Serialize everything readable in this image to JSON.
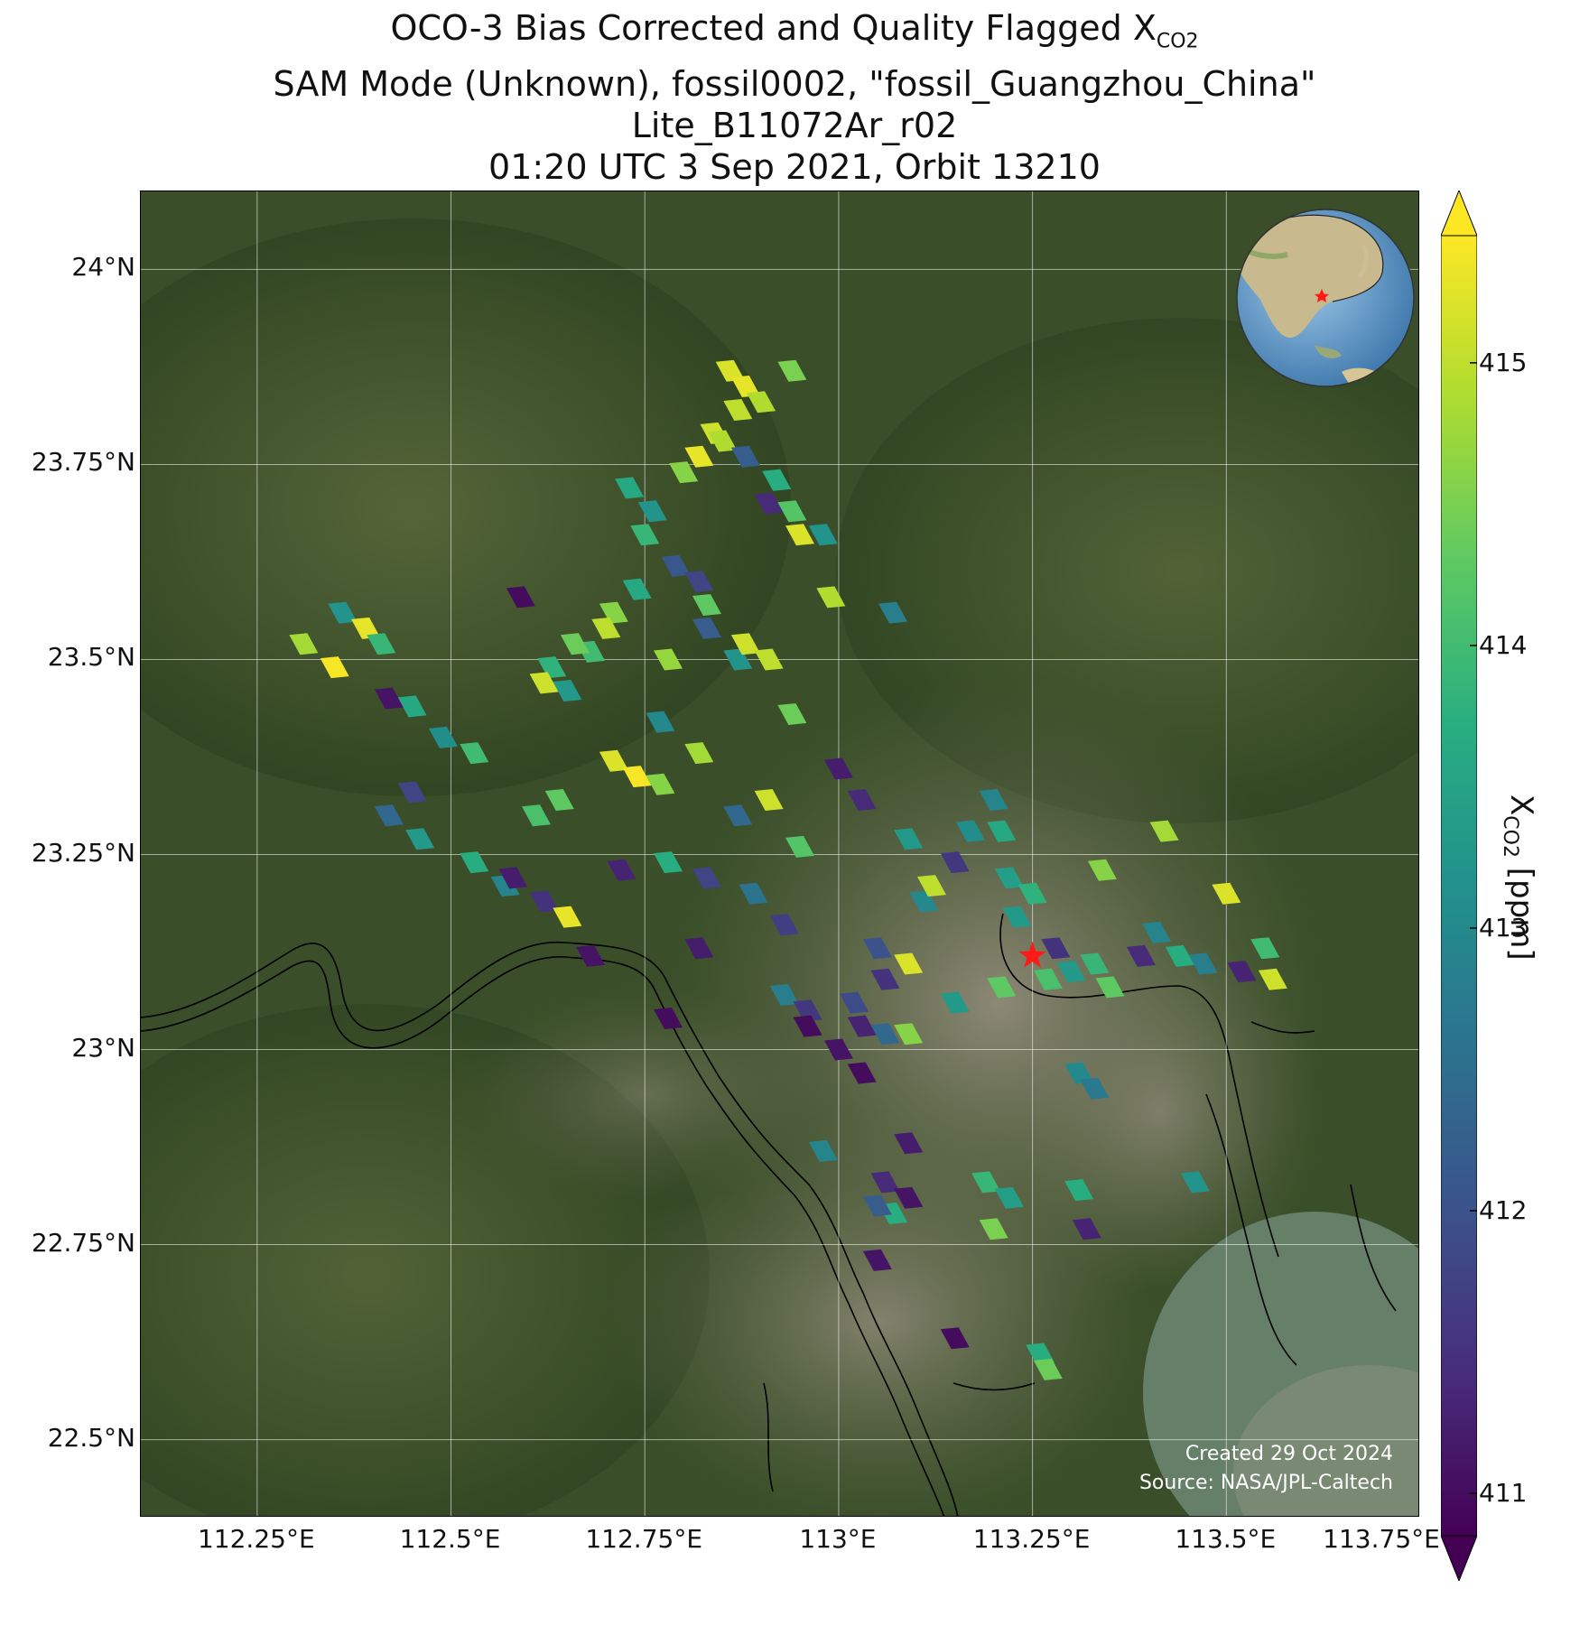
{
  "title": {
    "line1_main": "OCO-3 Bias Corrected and Quality Flagged X",
    "line1_sub": "CO2",
    "line2": "SAM Mode (Unknown), fossil0002, \"fossil_Guangzhou_China\"",
    "line3": "Lite_B11072Ar_r02",
    "line4": "01:20 UTC 3 Sep 2021, Orbit 13210"
  },
  "map": {
    "lon_range": [
      112.1,
      113.75
    ],
    "lat_range": [
      22.4,
      24.1
    ],
    "lat_ticks": [
      {
        "value": 24.0,
        "label": "24°N"
      },
      {
        "value": 23.75,
        "label": "23.75°N"
      },
      {
        "value": 23.5,
        "label": "23.5°N"
      },
      {
        "value": 23.25,
        "label": "23.25°N"
      },
      {
        "value": 23.0,
        "label": "23°N"
      },
      {
        "value": 22.75,
        "label": "22.75°N"
      },
      {
        "value": 22.5,
        "label": "22.5°N"
      }
    ],
    "lon_ticks": [
      {
        "value": 112.25,
        "label": "112.25°E"
      },
      {
        "value": 112.5,
        "label": "112.5°E"
      },
      {
        "value": 112.75,
        "label": "112.75°E"
      },
      {
        "value": 113.0,
        "label": "113°E"
      },
      {
        "value": 113.25,
        "label": "113.25°E"
      },
      {
        "value": 113.5,
        "label": "113.5°E"
      },
      {
        "value": 113.75,
        "label": "113.75°E"
      }
    ],
    "target": {
      "lon": 113.25,
      "lat": 23.12,
      "marker": "red-star"
    },
    "gridlines": true,
    "background": "satellite-imagery",
    "inset_globe": "globe-locator",
    "credit_line1": "Created 29 Oct 2024",
    "credit_line2": "Source: NASA/JPL-Caltech"
  },
  "colorbar": {
    "label_main": "X",
    "label_sub": "CO2",
    "label_unit": " [ppm]",
    "min": 410.85,
    "max": 415.45,
    "colormap": "viridis",
    "ticks": [
      {
        "value": 411,
        "label": "411"
      },
      {
        "value": 412,
        "label": "412"
      },
      {
        "value": 413,
        "label": "413"
      },
      {
        "value": 414,
        "label": "414"
      },
      {
        "value": 415,
        "label": "415"
      }
    ]
  },
  "chart_data": {
    "type": "scatter",
    "x_label": "",
    "y_label": "",
    "units": "ppm",
    "soundings": [
      {
        "lon": 112.86,
        "lat": 23.87,
        "value": 415.2
      },
      {
        "lon": 112.88,
        "lat": 23.85,
        "value": 415.3
      },
      {
        "lon": 112.9,
        "lat": 23.83,
        "value": 414.9
      },
      {
        "lon": 112.87,
        "lat": 23.82,
        "value": 415.0
      },
      {
        "lon": 112.84,
        "lat": 23.79,
        "value": 415.1
      },
      {
        "lon": 112.82,
        "lat": 23.76,
        "value": 415.3
      },
      {
        "lon": 112.8,
        "lat": 23.74,
        "value": 414.6
      },
      {
        "lon": 112.85,
        "lat": 23.78,
        "value": 414.9
      },
      {
        "lon": 112.88,
        "lat": 23.76,
        "value": 412.2
      },
      {
        "lon": 112.94,
        "lat": 23.87,
        "value": 414.5
      },
      {
        "lon": 112.92,
        "lat": 23.73,
        "value": 413.7
      },
      {
        "lon": 112.91,
        "lat": 23.7,
        "value": 411.4
      },
      {
        "lon": 112.94,
        "lat": 23.69,
        "value": 414.2
      },
      {
        "lon": 112.95,
        "lat": 23.66,
        "value": 415.2
      },
      {
        "lon": 112.98,
        "lat": 23.66,
        "value": 413.2
      },
      {
        "lon": 112.99,
        "lat": 23.58,
        "value": 414.9
      },
      {
        "lon": 113.07,
        "lat": 23.56,
        "value": 412.8
      },
      {
        "lon": 112.73,
        "lat": 23.72,
        "value": 413.6
      },
      {
        "lon": 112.76,
        "lat": 23.69,
        "value": 413.2
      },
      {
        "lon": 112.75,
        "lat": 23.66,
        "value": 413.9
      },
      {
        "lon": 112.79,
        "lat": 23.62,
        "value": 412.1
      },
      {
        "lon": 112.82,
        "lat": 23.6,
        "value": 411.8
      },
      {
        "lon": 112.83,
        "lat": 23.57,
        "value": 414.3
      },
      {
        "lon": 112.74,
        "lat": 23.59,
        "value": 413.6
      },
      {
        "lon": 112.71,
        "lat": 23.56,
        "value": 414.6
      },
      {
        "lon": 112.68,
        "lat": 23.51,
        "value": 414.0
      },
      {
        "lon": 112.7,
        "lat": 23.54,
        "value": 415.0
      },
      {
        "lon": 112.66,
        "lat": 23.52,
        "value": 414.4
      },
      {
        "lon": 112.63,
        "lat": 23.49,
        "value": 413.8
      },
      {
        "lon": 112.65,
        "lat": 23.46,
        "value": 413.3
      },
      {
        "lon": 112.62,
        "lat": 23.47,
        "value": 415.1
      },
      {
        "lon": 112.59,
        "lat": 23.58,
        "value": 411.0
      },
      {
        "lon": 112.78,
        "lat": 23.5,
        "value": 414.7
      },
      {
        "lon": 112.83,
        "lat": 23.54,
        "value": 412.2
      },
      {
        "lon": 112.87,
        "lat": 23.5,
        "value": 413.2
      },
      {
        "lon": 112.88,
        "lat": 23.52,
        "value": 415.1
      },
      {
        "lon": 112.91,
        "lat": 23.5,
        "value": 415.0
      },
      {
        "lon": 112.94,
        "lat": 23.43,
        "value": 414.4
      },
      {
        "lon": 112.77,
        "lat": 23.42,
        "value": 413.0
      },
      {
        "lon": 112.82,
        "lat": 23.38,
        "value": 414.8
      },
      {
        "lon": 112.71,
        "lat": 23.37,
        "value": 415.2
      },
      {
        "lon": 112.74,
        "lat": 23.35,
        "value": 415.4
      },
      {
        "lon": 112.77,
        "lat": 23.34,
        "value": 414.6
      },
      {
        "lon": 112.64,
        "lat": 23.32,
        "value": 414.3
      },
      {
        "lon": 112.61,
        "lat": 23.3,
        "value": 414.1
      },
      {
        "lon": 112.87,
        "lat": 23.3,
        "value": 412.4
      },
      {
        "lon": 112.91,
        "lat": 23.32,
        "value": 415.1
      },
      {
        "lon": 112.95,
        "lat": 23.26,
        "value": 414.2
      },
      {
        "lon": 113.0,
        "lat": 23.36,
        "value": 411.2
      },
      {
        "lon": 113.03,
        "lat": 23.32,
        "value": 411.4
      },
      {
        "lon": 113.09,
        "lat": 23.27,
        "value": 413.3
      },
      {
        "lon": 113.11,
        "lat": 23.19,
        "value": 413.0
      },
      {
        "lon": 112.45,
        "lat": 23.44,
        "value": 413.6
      },
      {
        "lon": 112.49,
        "lat": 23.4,
        "value": 413.1
      },
      {
        "lon": 112.53,
        "lat": 23.38,
        "value": 414.0
      },
      {
        "lon": 112.45,
        "lat": 23.33,
        "value": 411.8
      },
      {
        "lon": 112.42,
        "lat": 23.3,
        "value": 412.4
      },
      {
        "lon": 112.46,
        "lat": 23.27,
        "value": 413.3
      },
      {
        "lon": 112.53,
        "lat": 23.24,
        "value": 413.7
      },
      {
        "lon": 112.57,
        "lat": 23.21,
        "value": 412.9
      },
      {
        "lon": 112.36,
        "lat": 23.56,
        "value": 413.2
      },
      {
        "lon": 112.39,
        "lat": 23.54,
        "value": 415.3
      },
      {
        "lon": 112.41,
        "lat": 23.52,
        "value": 413.9
      },
      {
        "lon": 112.31,
        "lat": 23.52,
        "value": 414.8
      },
      {
        "lon": 112.35,
        "lat": 23.49,
        "value": 415.4
      },
      {
        "lon": 112.42,
        "lat": 23.45,
        "value": 411.1
      },
      {
        "lon": 112.58,
        "lat": 23.22,
        "value": 411.2
      },
      {
        "lon": 112.62,
        "lat": 23.19,
        "value": 411.5
      },
      {
        "lon": 112.65,
        "lat": 23.17,
        "value": 415.3
      },
      {
        "lon": 112.68,
        "lat": 23.12,
        "value": 411.1
      },
      {
        "lon": 112.72,
        "lat": 23.23,
        "value": 411.3
      },
      {
        "lon": 112.78,
        "lat": 23.24,
        "value": 413.7
      },
      {
        "lon": 112.83,
        "lat": 23.22,
        "value": 411.8
      },
      {
        "lon": 112.89,
        "lat": 23.2,
        "value": 412.6
      },
      {
        "lon": 112.78,
        "lat": 23.04,
        "value": 411.0
      },
      {
        "lon": 112.82,
        "lat": 23.13,
        "value": 411.2
      },
      {
        "lon": 112.93,
        "lat": 23.16,
        "value": 411.7
      },
      {
        "lon": 112.93,
        "lat": 23.07,
        "value": 412.8
      },
      {
        "lon": 112.96,
        "lat": 23.05,
        "value": 411.6
      },
      {
        "lon": 112.96,
        "lat": 23.03,
        "value": 411.0
      },
      {
        "lon": 113.02,
        "lat": 23.06,
        "value": 411.9
      },
      {
        "lon": 113.03,
        "lat": 23.03,
        "value": 411.3
      },
      {
        "lon": 113.06,
        "lat": 23.02,
        "value": 412.4
      },
      {
        "lon": 113.09,
        "lat": 23.02,
        "value": 414.6
      },
      {
        "lon": 113.0,
        "lat": 23.0,
        "value": 411.1
      },
      {
        "lon": 113.03,
        "lat": 22.97,
        "value": 411.0
      },
      {
        "lon": 113.06,
        "lat": 23.09,
        "value": 411.5
      },
      {
        "lon": 113.09,
        "lat": 23.11,
        "value": 415.2
      },
      {
        "lon": 113.05,
        "lat": 23.13,
        "value": 412.0
      },
      {
        "lon": 113.12,
        "lat": 23.21,
        "value": 415.0
      },
      {
        "lon": 113.22,
        "lat": 23.22,
        "value": 413.4
      },
      {
        "lon": 113.25,
        "lat": 23.2,
        "value": 413.8
      },
      {
        "lon": 113.23,
        "lat": 23.17,
        "value": 413.3
      },
      {
        "lon": 113.2,
        "lat": 23.32,
        "value": 412.9
      },
      {
        "lon": 113.17,
        "lat": 23.28,
        "value": 413.1
      },
      {
        "lon": 113.21,
        "lat": 23.28,
        "value": 413.6
      },
      {
        "lon": 113.15,
        "lat": 23.24,
        "value": 411.6
      },
      {
        "lon": 113.28,
        "lat": 23.13,
        "value": 411.5
      },
      {
        "lon": 113.3,
        "lat": 23.1,
        "value": 413.3
      },
      {
        "lon": 113.33,
        "lat": 23.11,
        "value": 413.9
      },
      {
        "lon": 113.35,
        "lat": 23.08,
        "value": 414.3
      },
      {
        "lon": 113.27,
        "lat": 23.09,
        "value": 414.1
      },
      {
        "lon": 113.34,
        "lat": 23.23,
        "value": 414.6
      },
      {
        "lon": 113.21,
        "lat": 23.08,
        "value": 414.3
      },
      {
        "lon": 113.15,
        "lat": 23.06,
        "value": 413.3
      },
      {
        "lon": 113.31,
        "lat": 22.97,
        "value": 413.0
      },
      {
        "lon": 113.33,
        "lat": 22.95,
        "value": 412.7
      },
      {
        "lon": 113.41,
        "lat": 23.15,
        "value": 412.9
      },
      {
        "lon": 113.44,
        "lat": 23.12,
        "value": 413.7
      },
      {
        "lon": 113.39,
        "lat": 23.12,
        "value": 411.4
      },
      {
        "lon": 113.47,
        "lat": 23.11,
        "value": 412.8
      },
      {
        "lon": 113.52,
        "lat": 23.1,
        "value": 411.3
      },
      {
        "lon": 113.5,
        "lat": 23.2,
        "value": 415.2
      },
      {
        "lon": 113.55,
        "lat": 23.13,
        "value": 414.0
      },
      {
        "lon": 113.56,
        "lat": 23.09,
        "value": 415.1
      },
      {
        "lon": 113.42,
        "lat": 23.28,
        "value": 414.8
      },
      {
        "lon": 113.46,
        "lat": 22.83,
        "value": 413.2
      },
      {
        "lon": 112.98,
        "lat": 22.87,
        "value": 412.9
      },
      {
        "lon": 113.09,
        "lat": 22.88,
        "value": 411.2
      },
      {
        "lon": 113.06,
        "lat": 22.83,
        "value": 411.4
      },
      {
        "lon": 113.09,
        "lat": 22.81,
        "value": 411.1
      },
      {
        "lon": 113.07,
        "lat": 22.79,
        "value": 413.7
      },
      {
        "lon": 113.05,
        "lat": 22.8,
        "value": 412.2
      },
      {
        "lon": 113.19,
        "lat": 22.83,
        "value": 413.9
      },
      {
        "lon": 113.22,
        "lat": 22.81,
        "value": 413.4
      },
      {
        "lon": 113.2,
        "lat": 22.77,
        "value": 414.5
      },
      {
        "lon": 113.31,
        "lat": 22.82,
        "value": 413.7
      },
      {
        "lon": 113.32,
        "lat": 22.77,
        "value": 411.3
      },
      {
        "lon": 113.05,
        "lat": 22.73,
        "value": 411.1
      },
      {
        "lon": 113.15,
        "lat": 22.63,
        "value": 411.0
      },
      {
        "lon": 113.26,
        "lat": 22.61,
        "value": 413.7
      },
      {
        "lon": 113.27,
        "lat": 22.59,
        "value": 414.4
      }
    ]
  }
}
